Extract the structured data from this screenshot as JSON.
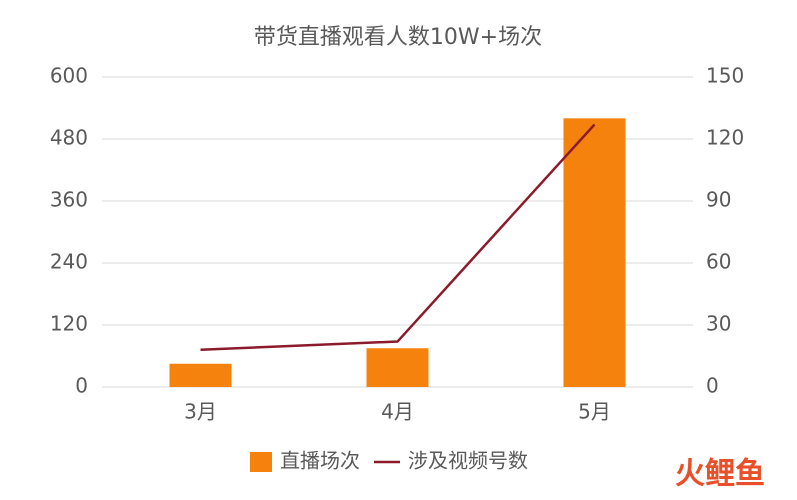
{
  "chart_data": {
    "type": "bar_line",
    "title": "带货直播观看人数10W+场次",
    "categories": [
      "3月",
      "4月",
      "5月"
    ],
    "series": [
      {
        "name": "直播场次",
        "type": "bar",
        "color": "#f5820d",
        "values": [
          45,
          75,
          520
        ]
      },
      {
        "name": "涉及视频号数",
        "type": "line",
        "color": "#8b1a2b",
        "axis": "y2",
        "values": [
          18,
          22,
          127
        ]
      }
    ],
    "ylim": [
      0,
      600
    ],
    "yticks": [
      0,
      120,
      240,
      360,
      480,
      600
    ],
    "y2lim": [
      0,
      150
    ],
    "y2ticks": [
      0,
      30,
      60,
      90,
      120,
      150
    ],
    "grid": true,
    "legend": "bottom",
    "watermark": "火鲤鱼"
  }
}
